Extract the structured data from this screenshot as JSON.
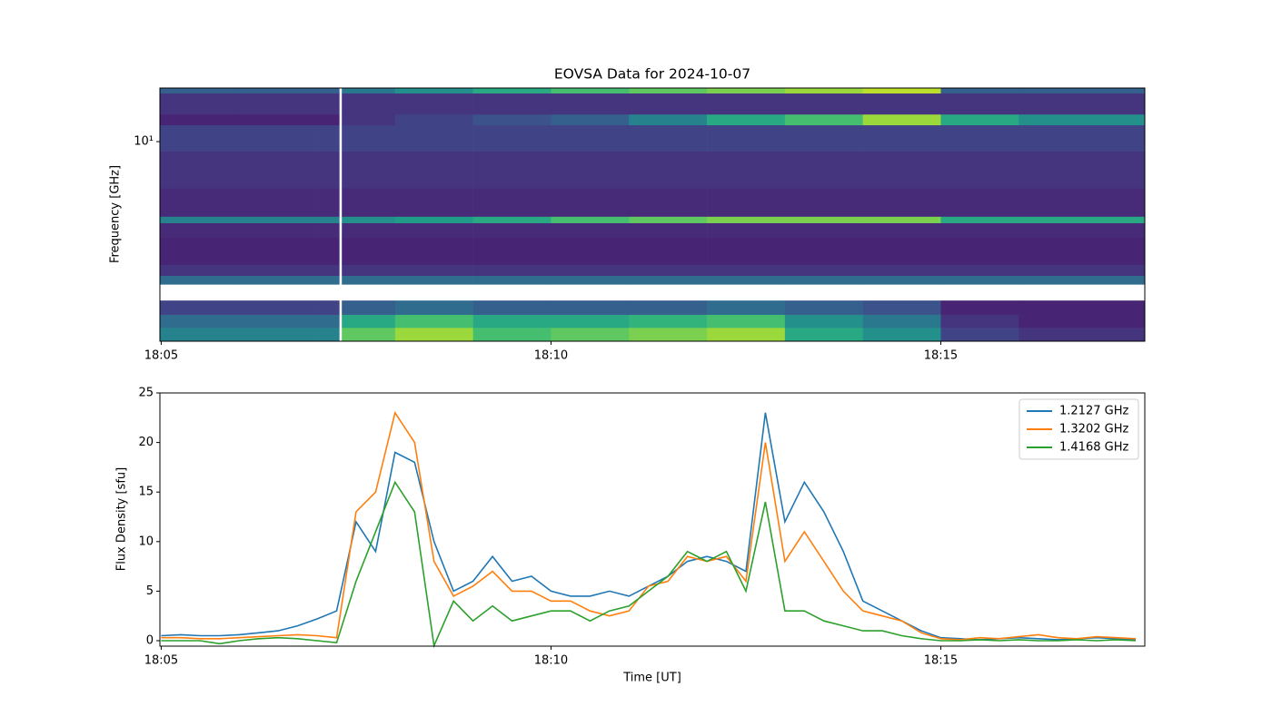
{
  "chart_data": [
    {
      "type": "heatmap",
      "title": "EOVSA Data for 2024-10-07",
      "ylabel": "Frequency [GHz]",
      "ylog": true,
      "colormap": "viridis",
      "xlim": [
        "18:04:59",
        "18:17:37"
      ],
      "xticks": [
        "18:05",
        "18:10",
        "18:15"
      ],
      "ylim": [
        1.12,
        18
      ],
      "yticks": [
        {
          "value": 10,
          "label": "10¹"
        }
      ],
      "x_edges": [
        "18:04:59",
        "18:06:00",
        "18:07:00",
        "18:07:17",
        "18:07:19",
        "18:08:00",
        "18:09:00",
        "18:10:00",
        "18:11:00",
        "18:12:00",
        "18:13:00",
        "18:14:00",
        "18:15:00",
        "18:16:00",
        "18:17:37"
      ],
      "y_edges": [
        1.12,
        1.3,
        1.5,
        1.75,
        2.09,
        2.3,
        2.6,
        3.5,
        4.1,
        4.4,
        6,
        9,
        12,
        13.5,
        17,
        18
      ],
      "z": [
        [
          0.45,
          0.45,
          0.45,
          null,
          0.75,
          0.85,
          0.7,
          0.75,
          0.8,
          0.85,
          0.6,
          0.5,
          0.2,
          0.15
        ],
        [
          0.35,
          0.35,
          0.35,
          null,
          0.6,
          0.7,
          0.6,
          0.6,
          0.65,
          0.7,
          0.5,
          0.4,
          0.15,
          0.1
        ],
        [
          0.2,
          0.2,
          0.2,
          null,
          0.3,
          0.35,
          0.3,
          0.3,
          0.3,
          0.35,
          0.3,
          0.25,
          0.1,
          0.1
        ],
        [
          null,
          null,
          null,
          null,
          null,
          null,
          null,
          null,
          null,
          null,
          null,
          null,
          null,
          null
        ],
        [
          0.35,
          0.35,
          0.35,
          null,
          0.35,
          0.35,
          0.35,
          0.35,
          0.35,
          0.35,
          0.35,
          0.35,
          0.35,
          0.35
        ],
        [
          0.15,
          0.15,
          0.15,
          null,
          0.15,
          0.15,
          0.15,
          0.15,
          0.15,
          0.15,
          0.15,
          0.15,
          0.15,
          0.15
        ],
        [
          0.1,
          0.1,
          0.1,
          null,
          0.1,
          0.1,
          0.1,
          0.1,
          0.1,
          0.1,
          0.1,
          0.1,
          0.1,
          0.1
        ],
        [
          0.12,
          0.12,
          0.12,
          null,
          0.12,
          0.12,
          0.12,
          0.12,
          0.12,
          0.12,
          0.12,
          0.12,
          0.12,
          0.12
        ],
        [
          0.45,
          0.45,
          0.45,
          null,
          0.5,
          0.55,
          0.6,
          0.7,
          0.75,
          0.8,
          0.8,
          0.8,
          0.6,
          0.6
        ],
        [
          0.12,
          0.12,
          0.12,
          null,
          0.12,
          0.12,
          0.12,
          0.12,
          0.12,
          0.12,
          0.12,
          0.12,
          0.12,
          0.12
        ],
        [
          0.15,
          0.15,
          0.15,
          null,
          0.15,
          0.15,
          0.15,
          0.15,
          0.15,
          0.15,
          0.15,
          0.15,
          0.15,
          0.15
        ],
        [
          0.2,
          0.2,
          0.2,
          null,
          0.2,
          0.2,
          0.2,
          0.2,
          0.2,
          0.2,
          0.2,
          0.2,
          0.2,
          0.2
        ],
        [
          0.1,
          0.1,
          0.1,
          null,
          0.15,
          0.2,
          0.25,
          0.3,
          0.45,
          0.6,
          0.7,
          0.85,
          0.6,
          0.5
        ],
        [
          0.15,
          0.15,
          0.15,
          null,
          0.15,
          0.15,
          0.15,
          0.15,
          0.15,
          0.15,
          0.15,
          0.15,
          0.15,
          0.15
        ],
        [
          0.3,
          0.3,
          0.3,
          null,
          0.4,
          0.5,
          0.6,
          0.7,
          0.75,
          0.8,
          0.85,
          0.9,
          0.3,
          0.3
        ]
      ]
    },
    {
      "type": "line",
      "xlabel": "Time [UT]",
      "ylabel": "Flux Density [sfu]",
      "legend": "upper right",
      "xlim": [
        "18:04:59",
        "18:17:37"
      ],
      "xticks": [
        "18:05",
        "18:10",
        "18:15"
      ],
      "ylim": [
        -0.55,
        25
      ],
      "yticks": [
        0,
        5,
        10,
        15,
        20,
        25
      ],
      "x": [
        "18:05:00",
        "18:05:15",
        "18:05:30",
        "18:05:45",
        "18:06:00",
        "18:06:15",
        "18:06:30",
        "18:06:45",
        "18:07:00",
        "18:07:15",
        "18:07:30",
        "18:07:45",
        "18:08:00",
        "18:08:15",
        "18:08:30",
        "18:08:45",
        "18:09:00",
        "18:09:15",
        "18:09:30",
        "18:09:45",
        "18:10:00",
        "18:10:15",
        "18:10:30",
        "18:10:45",
        "18:11:00",
        "18:11:15",
        "18:11:30",
        "18:11:45",
        "18:12:00",
        "18:12:15",
        "18:12:30",
        "18:12:45",
        "18:13:00",
        "18:13:15",
        "18:13:30",
        "18:13:45",
        "18:14:00",
        "18:14:15",
        "18:14:30",
        "18:14:45",
        "18:15:00",
        "18:15:15",
        "18:15:30",
        "18:15:45",
        "18:16:00",
        "18:16:15",
        "18:16:30",
        "18:16:45",
        "18:17:00",
        "18:17:15",
        "18:17:30"
      ],
      "series": [
        {
          "name": "1.2127 GHz",
          "color": "#1f77b4",
          "values": [
            0.5,
            0.6,
            0.5,
            0.5,
            0.6,
            0.8,
            1.0,
            1.5,
            2.2,
            3.0,
            12,
            9,
            19,
            18,
            10,
            5,
            6,
            8.5,
            6,
            6.5,
            5,
            4.5,
            4.5,
            5,
            4.5,
            5.5,
            6.5,
            8,
            8.5,
            8,
            7,
            23,
            12,
            16,
            13,
            9,
            4,
            3,
            2,
            1,
            0.3,
            0.2,
            0.1,
            0.2,
            0.3,
            0.2,
            0.1,
            0.2,
            0.3,
            0.2,
            0.1
          ]
        },
        {
          "name": "1.3202 GHz",
          "color": "#ff7f0e",
          "values": [
            0.3,
            0.3,
            0.2,
            0.2,
            0.3,
            0.4,
            0.5,
            0.6,
            0.5,
            0.3,
            13,
            15,
            23,
            20,
            8,
            4.5,
            5.5,
            7,
            5,
            5,
            4,
            4,
            3,
            2.5,
            3,
            5.5,
            6,
            8.5,
            8,
            8.5,
            6,
            20,
            8,
            11,
            8,
            5,
            3,
            2.5,
            2,
            0.8,
            0.2,
            0.1,
            0.3,
            0.2,
            0.4,
            0.6,
            0.3,
            0.2,
            0.4,
            0.3,
            0.2
          ]
        },
        {
          "name": "1.4168 GHz",
          "color": "#2ca02c",
          "values": [
            0,
            0,
            0,
            -0.3,
            0,
            0.2,
            0.3,
            0.2,
            0,
            -0.2,
            6,
            11,
            16,
            13,
            -0.5,
            4,
            2,
            3.5,
            2,
            2.5,
            3,
            3,
            2,
            3,
            3.5,
            5,
            6.5,
            9,
            8,
            9,
            5,
            14,
            3,
            3,
            2,
            1.5,
            1,
            1,
            0.5,
            0.2,
            0,
            0,
            0.1,
            0,
            0.1,
            0,
            0,
            0.1,
            0,
            0.1,
            0
          ]
        }
      ]
    }
  ]
}
